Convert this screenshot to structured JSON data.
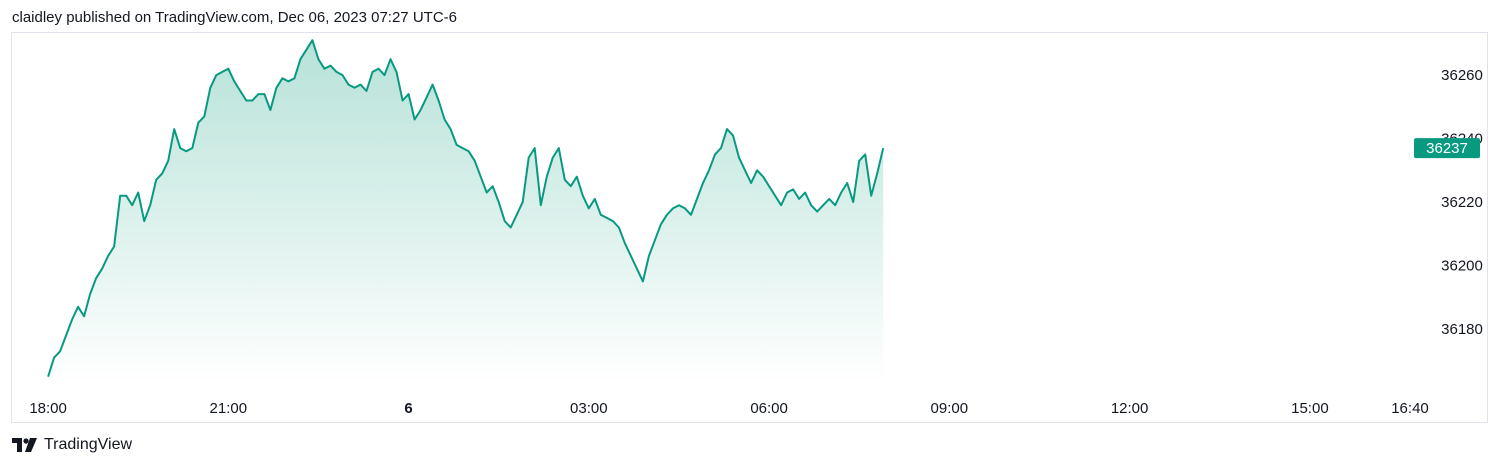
{
  "header": {
    "published_text": "claidley published on TradingView.com, Dec 06, 2023 07:27 UTC-6"
  },
  "footer": {
    "brand_name": "TradingView",
    "logo_icon": "tradingview-logo-icon"
  },
  "colors": {
    "line": "#089981",
    "area_top": "#b7e2d8",
    "area_bottom": "#ffffff",
    "label_bg": "#089981",
    "label_text": "#ffffff",
    "text": "#131722",
    "border": "#e0e3eb"
  },
  "chart_data": {
    "type": "area",
    "title": "",
    "xlabel": "",
    "ylabel": "",
    "grid": false,
    "y_axis": {
      "ticks": [
        36180,
        36200,
        36220,
        36240,
        36260
      ],
      "min": 36163,
      "max": 36272,
      "position": "right"
    },
    "x_axis": {
      "range_hours": [
        -6.6,
        16.7
      ],
      "ticks": [
        {
          "label": "18:00",
          "hour": -6,
          "bold": false
        },
        {
          "label": "21:00",
          "hour": -3,
          "bold": false
        },
        {
          "label": "6",
          "hour": 0,
          "bold": true
        },
        {
          "label": "03:00",
          "hour": 3,
          "bold": false
        },
        {
          "label": "06:00",
          "hour": 6,
          "bold": false
        },
        {
          "label": "09:00",
          "hour": 9,
          "bold": false
        },
        {
          "label": "12:00",
          "hour": 12,
          "bold": false
        },
        {
          "label": "15:00",
          "hour": 15,
          "bold": false
        },
        {
          "label": "16:40",
          "hour": 16.667,
          "bold": false
        }
      ]
    },
    "last_value": 36237,
    "series": [
      {
        "points": [
          [
            -6.0,
            36165
          ],
          [
            -5.9,
            36171
          ],
          [
            -5.8,
            36173
          ],
          [
            -5.7,
            36178
          ],
          [
            -5.6,
            36183
          ],
          [
            -5.5,
            36187
          ],
          [
            -5.4,
            36184
          ],
          [
            -5.3,
            36191
          ],
          [
            -5.2,
            36196
          ],
          [
            -5.1,
            36199
          ],
          [
            -5.0,
            36203
          ],
          [
            -4.9,
            36206
          ],
          [
            -4.8,
            36222
          ],
          [
            -4.7,
            36222
          ],
          [
            -4.6,
            36219
          ],
          [
            -4.5,
            36223
          ],
          [
            -4.4,
            36214
          ],
          [
            -4.3,
            36219
          ],
          [
            -4.2,
            36227
          ],
          [
            -4.1,
            36229
          ],
          [
            -4.0,
            36233
          ],
          [
            -3.9,
            36243
          ],
          [
            -3.8,
            36237
          ],
          [
            -3.7,
            36236
          ],
          [
            -3.6,
            36237
          ],
          [
            -3.5,
            36245
          ],
          [
            -3.4,
            36247
          ],
          [
            -3.3,
            36256
          ],
          [
            -3.2,
            36260
          ],
          [
            -3.1,
            36261
          ],
          [
            -3.0,
            36262
          ],
          [
            -2.9,
            36258
          ],
          [
            -2.8,
            36255
          ],
          [
            -2.7,
            36252
          ],
          [
            -2.6,
            36252
          ],
          [
            -2.5,
            36254
          ],
          [
            -2.4,
            36254
          ],
          [
            -2.3,
            36249
          ],
          [
            -2.2,
            36256
          ],
          [
            -2.1,
            36259
          ],
          [
            -2.0,
            36258
          ],
          [
            -1.9,
            36259
          ],
          [
            -1.8,
            36265
          ],
          [
            -1.7,
            36268
          ],
          [
            -1.6,
            36271
          ],
          [
            -1.5,
            36265
          ],
          [
            -1.4,
            36262
          ],
          [
            -1.3,
            36263
          ],
          [
            -1.2,
            36261
          ],
          [
            -1.1,
            36260
          ],
          [
            -1.0,
            36257
          ],
          [
            -0.9,
            36256
          ],
          [
            -0.8,
            36257
          ],
          [
            -0.7,
            36255
          ],
          [
            -0.6,
            36261
          ],
          [
            -0.5,
            36262
          ],
          [
            -0.4,
            36260
          ],
          [
            -0.3,
            36265
          ],
          [
            -0.2,
            36261
          ],
          [
            -0.1,
            36252
          ],
          [
            0.0,
            36254
          ],
          [
            0.1,
            36246
          ],
          [
            0.2,
            36249
          ],
          [
            0.3,
            36253
          ],
          [
            0.4,
            36257
          ],
          [
            0.5,
            36252
          ],
          [
            0.6,
            36246
          ],
          [
            0.7,
            36243
          ],
          [
            0.8,
            36238
          ],
          [
            0.9,
            36237
          ],
          [
            1.0,
            36236
          ],
          [
            1.1,
            36233
          ],
          [
            1.2,
            36228
          ],
          [
            1.3,
            36223
          ],
          [
            1.4,
            36225
          ],
          [
            1.5,
            36220
          ],
          [
            1.6,
            36214
          ],
          [
            1.7,
            36212
          ],
          [
            1.8,
            36216
          ],
          [
            1.9,
            36220
          ],
          [
            2.0,
            36234
          ],
          [
            2.1,
            36237
          ],
          [
            2.2,
            36219
          ],
          [
            2.3,
            36228
          ],
          [
            2.4,
            36234
          ],
          [
            2.5,
            36237
          ],
          [
            2.6,
            36227
          ],
          [
            2.7,
            36225
          ],
          [
            2.8,
            36228
          ],
          [
            2.9,
            36222
          ],
          [
            3.0,
            36218
          ],
          [
            3.1,
            36221
          ],
          [
            3.2,
            36216
          ],
          [
            3.3,
            36215
          ],
          [
            3.4,
            36214
          ],
          [
            3.5,
            36212
          ],
          [
            3.6,
            36207
          ],
          [
            3.7,
            36203
          ],
          [
            3.8,
            36199
          ],
          [
            3.9,
            36195
          ],
          [
            4.0,
            36203
          ],
          [
            4.1,
            36208
          ],
          [
            4.2,
            36213
          ],
          [
            4.3,
            36216
          ],
          [
            4.4,
            36218
          ],
          [
            4.5,
            36219
          ],
          [
            4.6,
            36218
          ],
          [
            4.7,
            36216
          ],
          [
            4.8,
            36221
          ],
          [
            4.9,
            36226
          ],
          [
            5.0,
            36230
          ],
          [
            5.1,
            36235
          ],
          [
            5.2,
            36237
          ],
          [
            5.3,
            36243
          ],
          [
            5.4,
            36241
          ],
          [
            5.5,
            36234
          ],
          [
            5.6,
            36230
          ],
          [
            5.7,
            36226
          ],
          [
            5.8,
            36230
          ],
          [
            5.9,
            36228
          ],
          [
            6.0,
            36225
          ],
          [
            6.1,
            36222
          ],
          [
            6.2,
            36219
          ],
          [
            6.3,
            36223
          ],
          [
            6.4,
            36224
          ],
          [
            6.5,
            36221
          ],
          [
            6.6,
            36223
          ],
          [
            6.7,
            36219
          ],
          [
            6.8,
            36217
          ],
          [
            6.9,
            36219
          ],
          [
            7.0,
            36221
          ],
          [
            7.1,
            36219
          ],
          [
            7.2,
            36223
          ],
          [
            7.3,
            36226
          ],
          [
            7.4,
            36220
          ],
          [
            7.5,
            36233
          ],
          [
            7.6,
            36235
          ],
          [
            7.7,
            36222
          ],
          [
            7.8,
            36229
          ],
          [
            7.9,
            36237
          ]
        ]
      }
    ]
  }
}
